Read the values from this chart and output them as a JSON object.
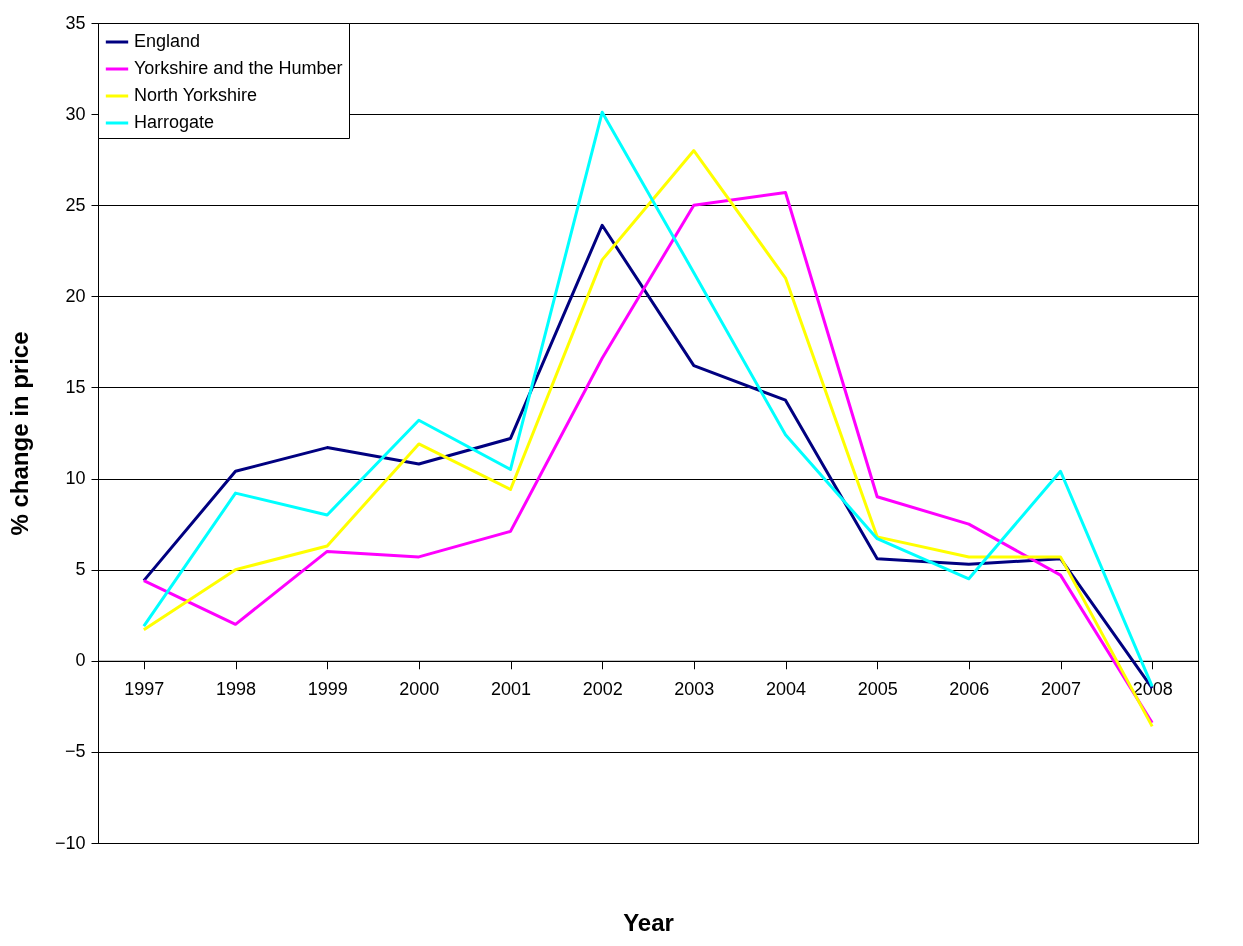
{
  "chart_data": {
    "type": "line",
    "xlabel": "Year",
    "ylabel": "% change in price",
    "categories": [
      "1997",
      "1998",
      "1999",
      "2000",
      "2001",
      "2002",
      "2003",
      "2004",
      "2005",
      "2006",
      "2007",
      "2008"
    ],
    "series": [
      {
        "name": "England",
        "color": "#000080",
        "values": [
          4.4,
          10.4,
          11.7,
          10.8,
          12.2,
          23.9,
          16.2,
          14.3,
          5.6,
          5.3,
          5.6,
          -1.5
        ]
      },
      {
        "name": "Yorkshire and the Humber",
        "color": "#ff00ff",
        "values": [
          4.4,
          2.0,
          6.0,
          5.7,
          7.1,
          16.6,
          25.0,
          25.7,
          9.0,
          7.5,
          4.7,
          -3.4
        ]
      },
      {
        "name": "North Yorkshire",
        "color": "#ffff00",
        "values": [
          1.7,
          5.0,
          6.3,
          11.9,
          9.4,
          22.0,
          28.0,
          21.0,
          6.8,
          5.7,
          5.7,
          -3.6
        ]
      },
      {
        "name": "Harrogate",
        "color": "#00ffff",
        "values": [
          1.9,
          9.2,
          8.0,
          13.2,
          10.5,
          30.1,
          21.3,
          12.4,
          6.7,
          4.5,
          10.4,
          -1.4
        ]
      }
    ],
    "ylim": [
      -10,
      35
    ],
    "yticks": [
      -10,
      -5,
      0,
      5,
      10,
      15,
      20,
      25,
      30,
      35
    ],
    "grid": "y",
    "legend": "top left",
    "marker": "none",
    "line_style": "solid"
  }
}
